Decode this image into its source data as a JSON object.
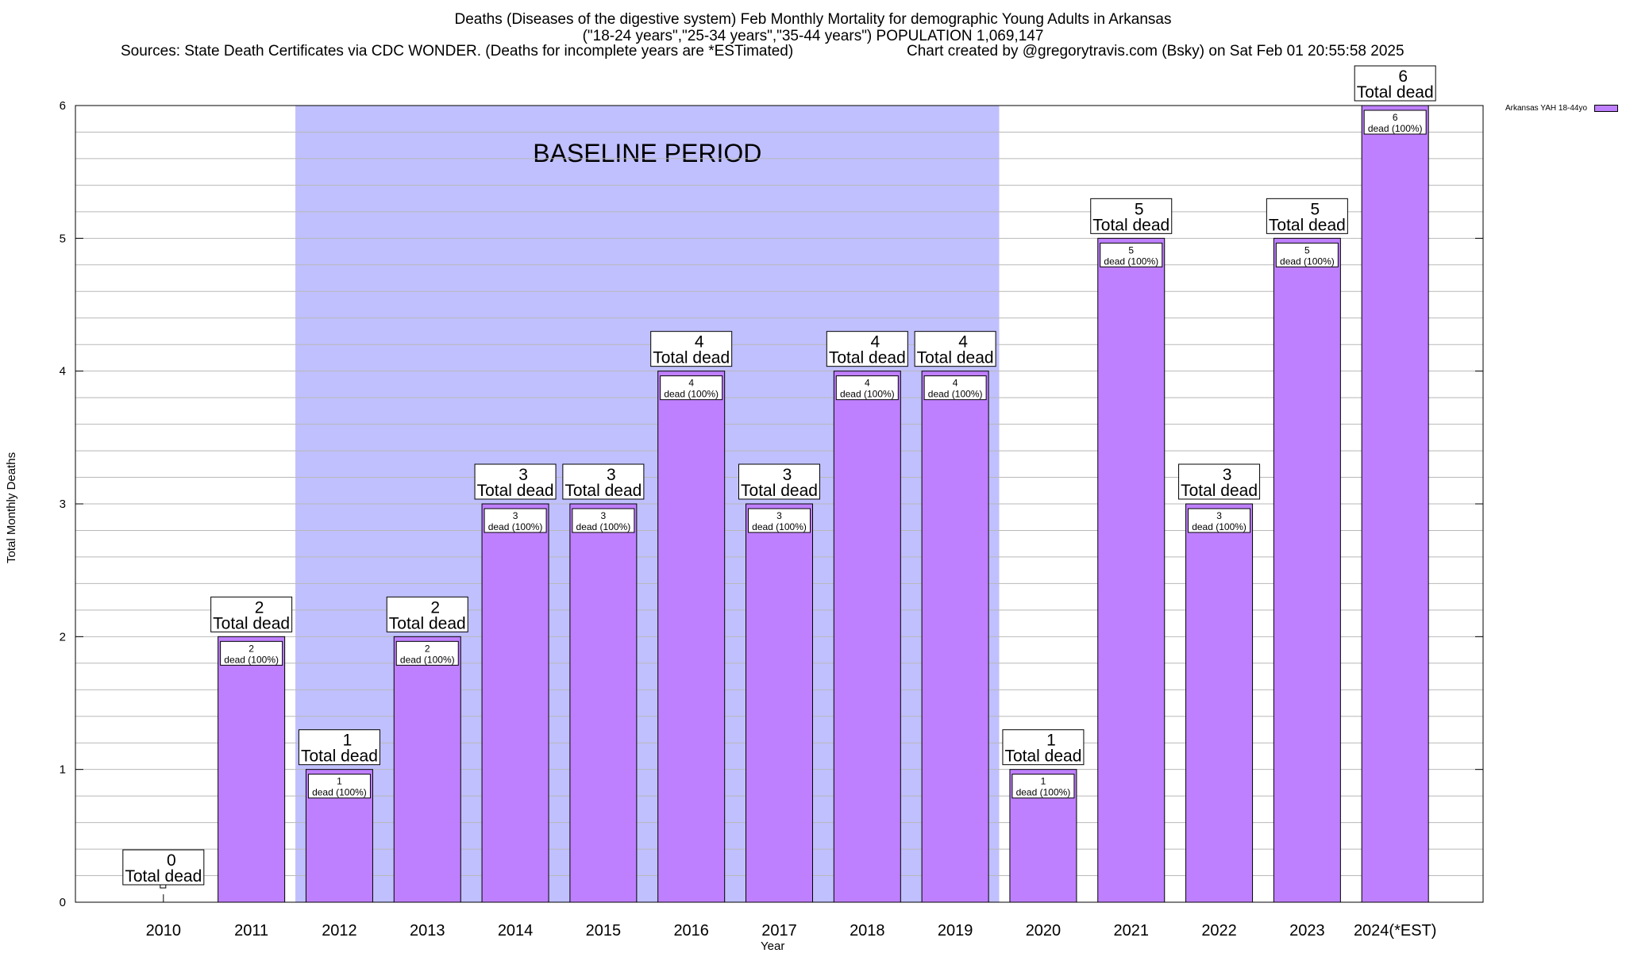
{
  "header": {
    "title_line1": "Deaths (Diseases of the digestive system) Feb Monthly Mortality for demographic Young Adults in Arkansas",
    "title_line2": "(\"18-24 years\",\"25-34 years\",\"35-44 years\") POPULATION 1,069,147",
    "sources": "Sources: State Death Certificates via CDC WONDER. (Deaths for incomplete years are *ESTimated)",
    "credit": "Chart created by @gregorytravis.com (Bsky) on Sat Feb 01 20:55:58 2025"
  },
  "chart_data": {
    "type": "bar",
    "categories": [
      "2010",
      "2011",
      "2012",
      "2013",
      "2014",
      "2015",
      "2016",
      "2017",
      "2018",
      "2019",
      "2020",
      "2021",
      "2022",
      "2023",
      "2024(*EST)"
    ],
    "series": [
      {
        "name": "Arkansas YAH 18-44yo",
        "values": [
          0,
          2,
          1,
          2,
          3,
          3,
          4,
          3,
          4,
          4,
          1,
          5,
          3,
          5,
          6
        ],
        "color": "#bf80ff"
      }
    ],
    "total_label_suffix": "Total dead",
    "inner_label_suffix": "dead (100%)",
    "xlabel": "Year",
    "ylabel": "Total Monthly Deaths",
    "ylim": [
      0,
      6
    ],
    "yticks": [
      0,
      1,
      2,
      3,
      4,
      5,
      6
    ],
    "grid": true,
    "legend_position": "top-right",
    "baseline": {
      "label": "BASELINE PERIOD",
      "start": "2012",
      "end": "2019",
      "color": "#c0c0ff"
    }
  }
}
